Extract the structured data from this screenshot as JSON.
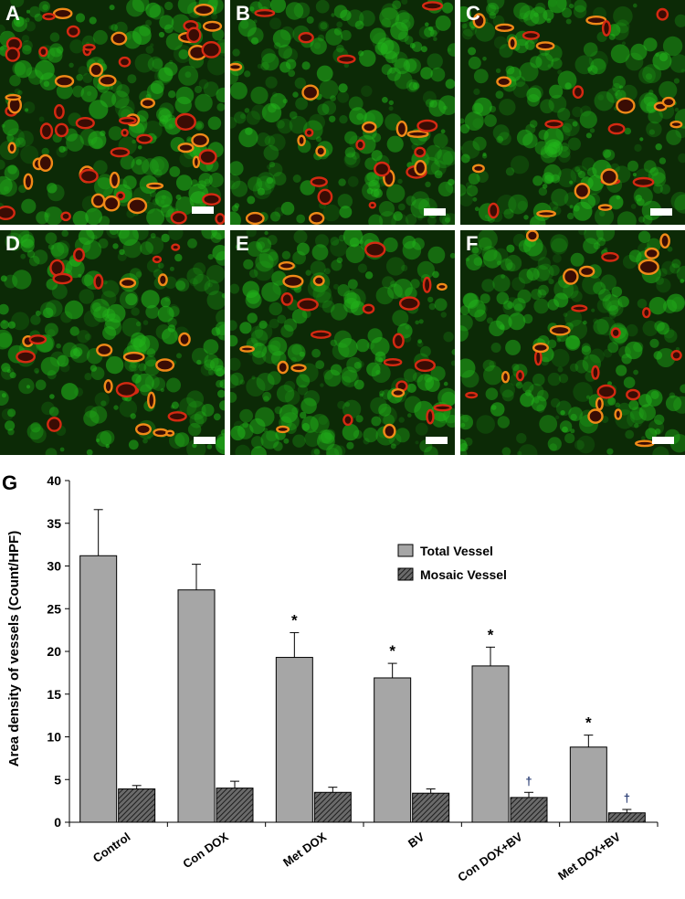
{
  "panels": [
    {
      "letter": "A"
    },
    {
      "letter": "B"
    },
    {
      "letter": "C"
    },
    {
      "letter": "D"
    },
    {
      "letter": "E"
    },
    {
      "letter": "F"
    }
  ],
  "chart_panel_letter": "G",
  "colors": {
    "tissue_green": "#22b51b",
    "vessel_red": "#d42a12",
    "vessel_orange": "#f08a18",
    "bar_total": "#a6a6a6",
    "bar_mosaic": "#4a4a4a"
  },
  "chart_data": {
    "type": "bar",
    "categories": [
      "Control",
      "Con DOX",
      "Met DOX",
      "BV",
      "Con DOX+BV",
      "Met DOX+BV"
    ],
    "series": [
      {
        "name": "Total Vessel",
        "values": [
          31.2,
          27.2,
          19.3,
          16.9,
          18.3,
          8.8
        ],
        "errors": [
          5.4,
          3.0,
          2.9,
          1.7,
          2.2,
          1.4
        ],
        "pattern": "solid gray"
      },
      {
        "name": "Mosaic Vessel",
        "values": [
          3.9,
          4.0,
          3.5,
          3.4,
          2.9,
          1.1
        ],
        "errors": [
          0.4,
          0.8,
          0.6,
          0.5,
          0.6,
          0.4
        ],
        "pattern": "hatched"
      }
    ],
    "annotations": {
      "Total Vessel": [
        "",
        "",
        "*",
        "*",
        "*",
        "*"
      ],
      "Mosaic Vessel": [
        "",
        "",
        "",
        "",
        "†",
        "†"
      ]
    },
    "title": "",
    "xlabel": "",
    "ylabel": "Area density of vessels (Count/HPF)",
    "ylim": [
      0,
      40
    ],
    "yticks": [
      "0",
      "5",
      "10",
      "15",
      "20",
      "25",
      "30",
      "35",
      "40"
    ],
    "grid": false,
    "legend_position": "top-right"
  }
}
